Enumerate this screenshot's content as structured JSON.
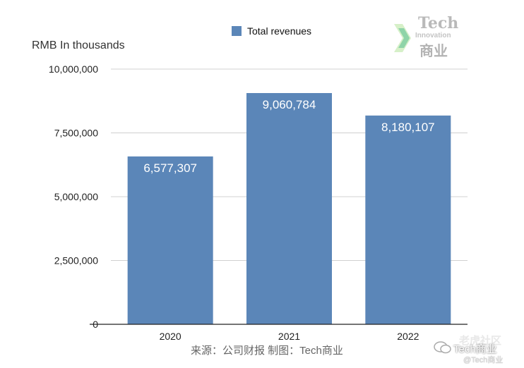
{
  "chart_data": {
    "type": "bar",
    "categories": [
      "2020",
      "2021",
      "2022"
    ],
    "series": [
      {
        "name": "Total revenues",
        "values": [
          6577307,
          9060784,
          8180107
        ]
      }
    ],
    "data_labels": [
      "6,577,307",
      "9,060,784",
      "8,180,107"
    ],
    "yticks": [
      "0",
      "2,500,000",
      "5,000,000",
      "7,500,000",
      "10,000,000"
    ],
    "ylim": [
      0,
      10000000
    ],
    "ylabel": "RMB In thousands",
    "legend_position": "top-center",
    "grid": true,
    "bar_color": "#5b86b8"
  },
  "source": "来源：公司财报 制图：Tech商业",
  "logo": {
    "line1": "Tech",
    "line2": "Innovation",
    "line3": "商业"
  },
  "watermark": {
    "line1": "老虎社区",
    "line2": "Tech商业",
    "line3": "@Tech商业"
  }
}
